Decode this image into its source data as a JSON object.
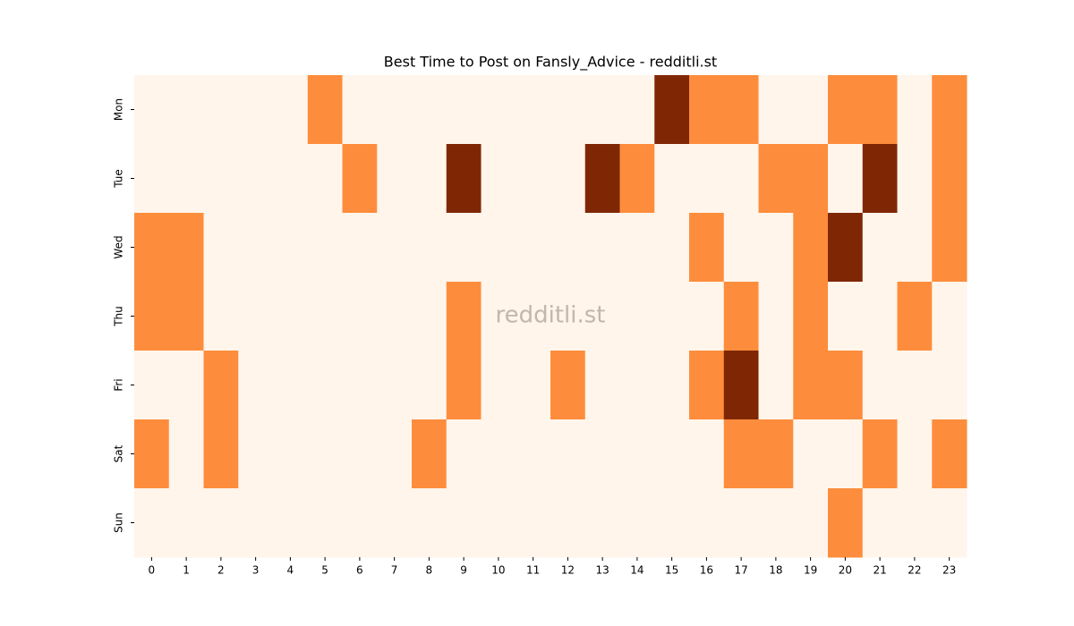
{
  "chart_data": {
    "type": "heatmap",
    "title": "Best Time to Post on Fansly_Advice - redditli.st",
    "watermark": "redditli.st",
    "x_categories": [
      "0",
      "1",
      "2",
      "3",
      "4",
      "5",
      "6",
      "7",
      "8",
      "9",
      "10",
      "11",
      "12",
      "13",
      "14",
      "15",
      "16",
      "17",
      "18",
      "19",
      "20",
      "21",
      "22",
      "23"
    ],
    "y_categories": [
      "Mon",
      "Tue",
      "Wed",
      "Thu",
      "Fri",
      "Sat",
      "Sun"
    ],
    "colors": [
      "#fff5eb",
      "#fd8d3c",
      "#7f2704"
    ],
    "values": [
      [
        0,
        0,
        0,
        0,
        0,
        1,
        0,
        0,
        0,
        0,
        0,
        0,
        0,
        0,
        0,
        2,
        1,
        1,
        0,
        0,
        1,
        1,
        0,
        1
      ],
      [
        0,
        0,
        0,
        0,
        0,
        0,
        1,
        0,
        0,
        2,
        0,
        0,
        0,
        2,
        1,
        0,
        0,
        0,
        1,
        1,
        0,
        2,
        0,
        1
      ],
      [
        1,
        1,
        0,
        0,
        0,
        0,
        0,
        0,
        0,
        0,
        0,
        0,
        0,
        0,
        0,
        0,
        1,
        0,
        0,
        1,
        2,
        0,
        0,
        1
      ],
      [
        1,
        1,
        0,
        0,
        0,
        0,
        0,
        0,
        0,
        1,
        0,
        0,
        0,
        0,
        0,
        0,
        0,
        1,
        0,
        1,
        0,
        0,
        1,
        0
      ],
      [
        0,
        0,
        1,
        0,
        0,
        0,
        0,
        0,
        0,
        1,
        0,
        0,
        1,
        0,
        0,
        0,
        1,
        2,
        0,
        1,
        1,
        0,
        0,
        0
      ],
      [
        1,
        0,
        1,
        0,
        0,
        0,
        0,
        0,
        1,
        0,
        0,
        0,
        0,
        0,
        0,
        0,
        0,
        1,
        1,
        0,
        0,
        1,
        0,
        1
      ],
      [
        0,
        0,
        0,
        0,
        0,
        0,
        0,
        0,
        0,
        0,
        0,
        0,
        0,
        0,
        0,
        0,
        0,
        0,
        0,
        0,
        1,
        0,
        0,
        0
      ]
    ]
  }
}
